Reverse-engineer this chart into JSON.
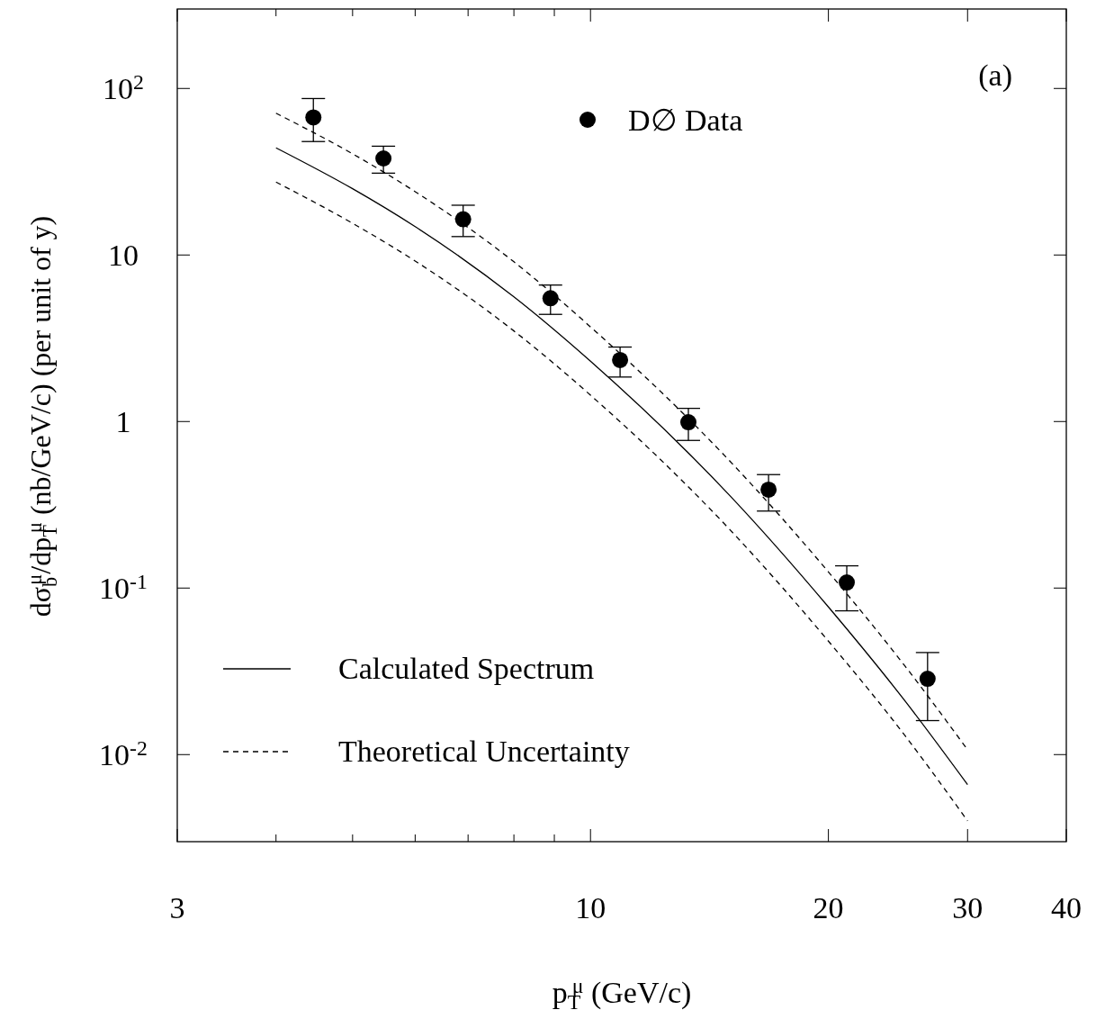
{
  "chart_data": {
    "type": "line",
    "xlabel": "p$_{T}$$^{μ}$ (GeV/c)",
    "ylabel": "dσ$_{b}$$^{μ}$/dp$_{T}$$^{μ}$ (nb/GeV/c)  (per unit of y)",
    "log": "xy",
    "xlim": [
      3,
      40
    ],
    "ylim": [
      0.003,
      300
    ],
    "xticks": [
      3,
      {
        "value": 4,
        "label": null
      },
      {
        "value": 5,
        "label": null
      },
      {
        "value": 6,
        "label": null
      },
      {
        "value": 7,
        "label": null
      },
      {
        "value": 8,
        "label": null
      },
      {
        "value": 9,
        "label": null
      },
      10,
      20,
      30,
      40
    ],
    "yticks": [
      {
        "value": 0.01,
        "label": "10$^{-2}$"
      },
      {
        "value": 0.1,
        "label": "10$^{-1}$"
      },
      1,
      10,
      {
        "value": 100,
        "label": "10$^{2}$"
      }
    ],
    "grid": false,
    "legend": "bottom left",
    "annotations": [
      "(a)"
    ],
    "series": [
      {
        "name": "D∅ Data",
        "type": "scatter",
        "marker": "circle",
        "color": "#000000",
        "x": [
          4.46,
          5.47,
          6.9,
          8.9,
          10.9,
          13.3,
          16.8,
          21.1,
          26.7
        ],
        "values": [
          67,
          38,
          16.4,
          5.5,
          2.34,
          0.99,
          0.39,
          0.108,
          0.0285
        ],
        "errors": [
          [
            48,
            87
          ],
          [
            31,
            45
          ],
          [
            12.9,
            19.9
          ],
          [
            4.4,
            6.6
          ],
          [
            1.85,
            2.8
          ],
          [
            0.77,
            1.2
          ],
          [
            0.29,
            0.48
          ],
          [
            0.073,
            0.136
          ],
          [
            0.016,
            0.041
          ]
        ]
      },
      {
        "name": "Calculated Spectrum",
        "line_style": "solid",
        "color": "#000000",
        "x": [
          4,
          5,
          6,
          8,
          10,
          15,
          20,
          25,
          30
        ],
        "values": [
          44,
          25,
          14.8,
          5.6,
          2.3,
          0.36,
          0.077,
          0.021,
          0.0066
        ]
      },
      {
        "name": "Theoretical Uncertainty",
        "line_style": "dashed",
        "color": "#000000",
        "x": [
          4,
          5,
          6,
          8,
          10,
          15,
          20,
          25,
          30
        ],
        "values": [
          71,
          40.5,
          24,
          9.1,
          3.7,
          0.58,
          0.125,
          0.034,
          0.0107
        ]
      },
      {
        "line_style": "dashed",
        "color": "#000000",
        "x": [
          4,
          5,
          6,
          8,
          10,
          15,
          20,
          25,
          30
        ],
        "values": [
          27.4,
          15.5,
          9.2,
          3.5,
          1.44,
          0.225,
          0.048,
          0.013,
          0.004
        ]
      }
    ]
  }
}
